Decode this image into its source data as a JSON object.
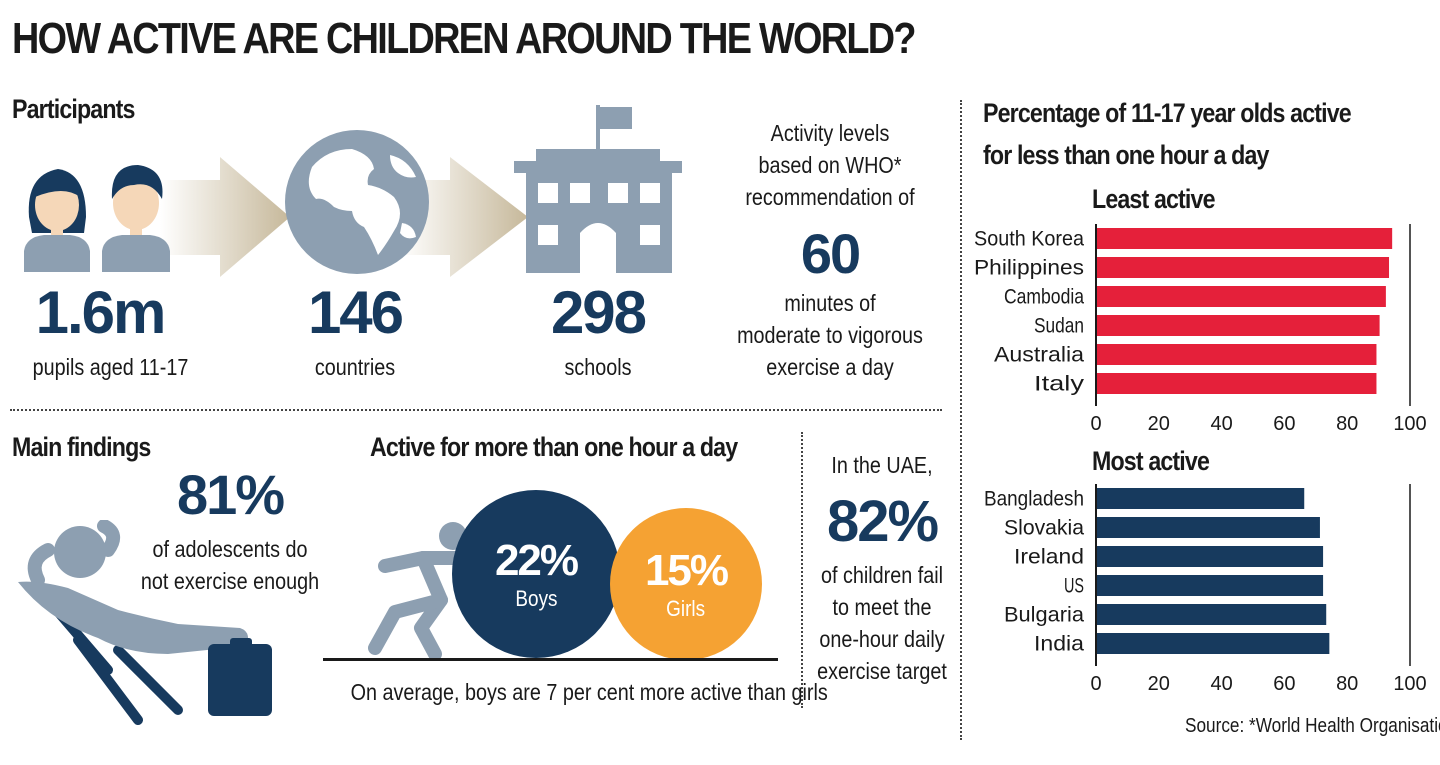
{
  "title": "HOW ACTIVE ARE CHILDREN AROUND THE WORLD?",
  "participants": {
    "heading": "Participants",
    "pupils": {
      "value": "1.6m",
      "label": "pupils aged 11-17"
    },
    "countries": {
      "value": "146",
      "label": "countries"
    },
    "schools": {
      "value": "298",
      "label": "schools"
    }
  },
  "who": {
    "line1": "Activity levels",
    "line2": "based on WHO*",
    "line3": "recommendation of",
    "value": "60",
    "line4": "minutes of",
    "line5": "moderate to vigorous",
    "line6": "exercise a day"
  },
  "findings": {
    "heading": "Main findings",
    "value": "81%",
    "line1": "of adolescents do",
    "line2": "not exercise enough"
  },
  "active": {
    "heading": "Active for more than one hour a day",
    "boys": {
      "value": "22%",
      "label": "Boys"
    },
    "girls": {
      "value": "15%",
      "label": "Girls"
    },
    "footer": "On average, boys are 7 per cent more active than girls"
  },
  "uae": {
    "line1": "In the UAE,",
    "value": "82%",
    "line2": "of children fail",
    "line3": "to meet the",
    "line4": "one-hour daily",
    "line5": "exercise target"
  },
  "chart_title_line1": "Percentage of 11-17 year olds active",
  "chart_title_line2": "for less than one hour a day",
  "source": "Source: *World Health Organisation",
  "colors": {
    "navy": "#173a5e",
    "red": "#e5203a",
    "orange": "#f5a233",
    "grey": "#8d9fb1",
    "skin": "#f5d7b8"
  },
  "chart_data": [
    {
      "type": "bar",
      "orientation": "horizontal",
      "title": "Least active",
      "categories": [
        "South Korea",
        "Philippines",
        "Cambodia",
        "Sudan",
        "Australia",
        "Italy"
      ],
      "values": [
        94,
        93,
        92,
        90,
        89,
        89
      ],
      "xlim": [
        0,
        100
      ],
      "xticks": [
        0,
        20,
        40,
        60,
        80,
        100
      ],
      "color": "#e5203a"
    },
    {
      "type": "bar",
      "orientation": "horizontal",
      "title": "Most active",
      "categories": [
        "Bangladesh",
        "Slovakia",
        "Ireland",
        "US",
        "Bulgaria",
        "India"
      ],
      "values": [
        66,
        71,
        72,
        72,
        73,
        74
      ],
      "xlim": [
        0,
        100
      ],
      "xticks": [
        0,
        20,
        40,
        60,
        80,
        100
      ],
      "color": "#173a5e"
    }
  ]
}
